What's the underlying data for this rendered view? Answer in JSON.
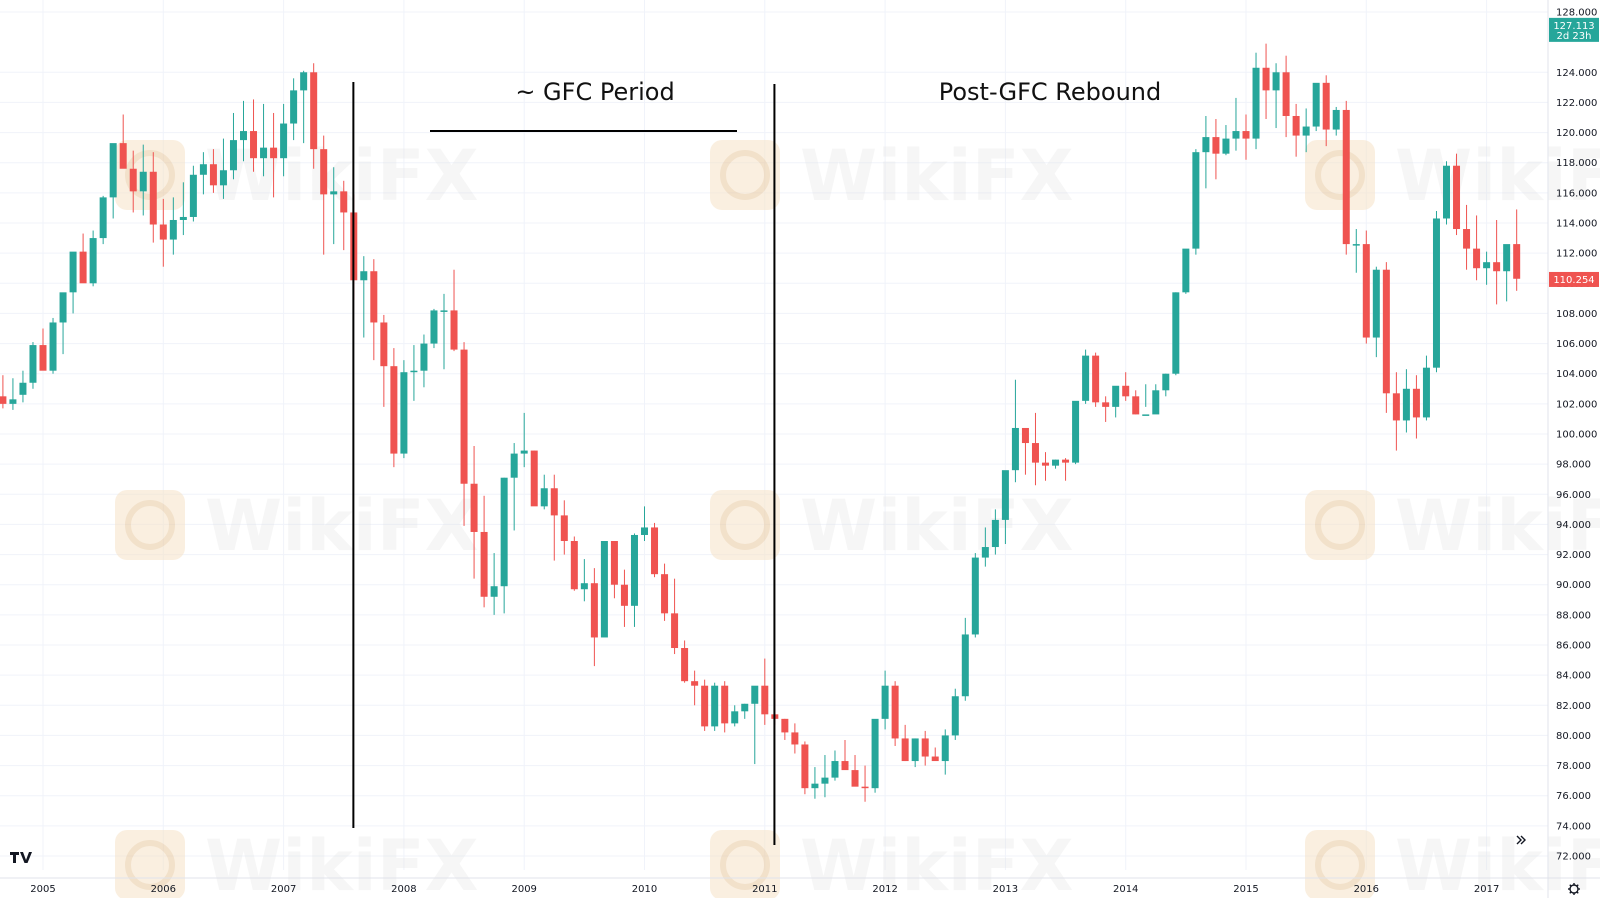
{
  "chart_data": {
    "type": "candlestick",
    "title": "",
    "xlabel": "",
    "ylabel": "",
    "timeframe": "monthly",
    "ylim": [
      71.2,
      129.0
    ],
    "y_ticks": [
      "128.000",
      "124.000",
      "122.000",
      "120.000",
      "118.000",
      "116.000",
      "114.000",
      "112.000",
      "110.000",
      "108.000",
      "106.000",
      "104.000",
      "102.000",
      "100.000",
      "98.000",
      "96.000",
      "94.000",
      "92.000",
      "90.000",
      "88.000",
      "86.000",
      "84.000",
      "82.000",
      "80.000",
      "78.000",
      "76.000",
      "74.000",
      "72.000"
    ],
    "x_ticks": [
      {
        "label": "2005",
        "year": 2005
      },
      {
        "label": "2006",
        "year": 2006
      },
      {
        "label": "2007",
        "year": 2007
      },
      {
        "label": "2008",
        "year": 2008
      },
      {
        "label": "2009",
        "year": 2009
      },
      {
        "label": "2010",
        "year": 2010
      },
      {
        "label": "2011",
        "year": 2011
      },
      {
        "label": "2012",
        "year": 2012
      },
      {
        "label": "2013",
        "year": 2013
      },
      {
        "label": "2014",
        "year": 2014
      },
      {
        "label": "2015",
        "year": 2015
      },
      {
        "label": "2016",
        "year": 2016
      },
      {
        "label": "2017",
        "year": 2017
      }
    ],
    "up_color": "#26a69a",
    "down_color": "#ef5350",
    "price_tags": [
      {
        "value": 127.113,
        "label": "127.113",
        "sublabel": "2d 23h",
        "color": "#26a69a"
      },
      {
        "value": 110.254,
        "label": "110.254",
        "sublabel": "",
        "color": "#ef5350"
      }
    ],
    "annotations": [
      {
        "text": "~ GFC Period",
        "start_year": 2007.58,
        "end_year": 2011.08
      },
      {
        "text": "Post-GFC Rebound",
        "start_year": 2011.08
      }
    ],
    "series": [
      {
        "values": [
          [
            104.4,
            105.2,
            102.3,
            104.9
          ],
          [
            104.9,
            106.3,
            102.6,
            102.5
          ],
          [
            102.5,
            103.9,
            101.7,
            102.0
          ],
          [
            102.0,
            103.7,
            101.6,
            102.3
          ],
          [
            102.6,
            104.2,
            102.1,
            103.4
          ],
          [
            103.4,
            106.1,
            103.0,
            105.9
          ],
          [
            105.9,
            107.0,
            104.9,
            104.2
          ],
          [
            104.2,
            107.7,
            104.0,
            107.4
          ],
          [
            107.4,
            108.2,
            105.3,
            109.4
          ],
          [
            109.4,
            111.5,
            108.0,
            112.1
          ],
          [
            112.1,
            113.3,
            110.3,
            110.0
          ],
          [
            110.0,
            113.5,
            109.8,
            113.0
          ],
          [
            113.0,
            115.8,
            112.6,
            115.7
          ],
          [
            115.7,
            118.6,
            114.3,
            119.3
          ],
          [
            119.3,
            121.2,
            118.4,
            117.6
          ],
          [
            117.6,
            118.8,
            114.7,
            116.1
          ],
          [
            116.1,
            119.2,
            114.5,
            117.4
          ],
          [
            117.4,
            118.7,
            112.7,
            113.9
          ],
          [
            113.9,
            115.6,
            111.1,
            112.9
          ],
          [
            112.9,
            115.7,
            111.9,
            114.2
          ],
          [
            114.2,
            116.7,
            113.2,
            114.4
          ],
          [
            114.4,
            117.8,
            114.1,
            117.2
          ],
          [
            117.2,
            118.7,
            115.9,
            117.9
          ],
          [
            117.9,
            118.9,
            116.0,
            116.5
          ],
          [
            116.5,
            119.6,
            115.6,
            117.5
          ],
          [
            117.5,
            121.3,
            116.9,
            119.5
          ],
          [
            119.5,
            122.1,
            118.1,
            120.1
          ],
          [
            120.1,
            122.2,
            117.4,
            118.3
          ],
          [
            118.3,
            121.9,
            117.1,
            119.0
          ],
          [
            119.0,
            121.3,
            115.7,
            118.3
          ],
          [
            118.3,
            121.9,
            117.1,
            120.6
          ],
          [
            120.6,
            123.6,
            119.5,
            122.8
          ],
          [
            122.8,
            124.1,
            119.3,
            124.0
          ],
          [
            124.0,
            124.6,
            117.6,
            118.9
          ],
          [
            118.9,
            119.8,
            111.9,
            115.9
          ],
          [
            115.9,
            117.7,
            112.6,
            116.1
          ],
          [
            116.1,
            116.8,
            112.2,
            114.7
          ],
          [
            114.7,
            115.9,
            108.9,
            110.2
          ],
          [
            110.2,
            111.8,
            106.4,
            110.8
          ],
          [
            110.8,
            111.6,
            104.9,
            107.4
          ],
          [
            107.4,
            107.9,
            101.8,
            104.5
          ],
          [
            104.5,
            105.7,
            97.8,
            98.7
          ],
          [
            98.7,
            104.9,
            98.4,
            104.1
          ],
          [
            104.1,
            105.9,
            102.2,
            104.2
          ],
          [
            104.2,
            106.6,
            103.1,
            106.0
          ],
          [
            106.0,
            108.3,
            105.7,
            108.2
          ],
          [
            108.2,
            109.3,
            104.3,
            108.2
          ],
          [
            108.2,
            110.9,
            105.5,
            105.6
          ],
          [
            105.6,
            106.1,
            93.9,
            96.7
          ],
          [
            96.7,
            99.2,
            90.4,
            93.5
          ],
          [
            93.5,
            95.9,
            88.5,
            89.2
          ],
          [
            89.2,
            92.1,
            88.0,
            89.9
          ],
          [
            89.9,
            97.1,
            88.1,
            97.1
          ],
          [
            97.1,
            99.4,
            93.6,
            98.7
          ],
          [
            98.7,
            101.4,
            97.8,
            98.9
          ],
          [
            98.9,
            98.9,
            95.5,
            95.2
          ],
          [
            95.2,
            97.3,
            95.0,
            96.4
          ],
          [
            96.4,
            97.3,
            91.6,
            94.6
          ],
          [
            94.6,
            95.6,
            92.0,
            92.9
          ],
          [
            92.9,
            93.2,
            89.6,
            89.7
          ],
          [
            89.7,
            91.7,
            88.9,
            90.1
          ],
          [
            90.1,
            91.1,
            84.6,
            86.5
          ],
          [
            86.5,
            92.1,
            86.6,
            92.9
          ],
          [
            92.9,
            92.9,
            89.1,
            90.0
          ],
          [
            90.0,
            91.0,
            87.2,
            88.6
          ],
          [
            88.6,
            93.4,
            87.2,
            93.3
          ],
          [
            93.3,
            95.2,
            92.9,
            93.8
          ],
          [
            93.8,
            94.1,
            90.5,
            90.7
          ],
          [
            90.7,
            91.4,
            87.6,
            88.1
          ],
          [
            88.1,
            90.4,
            85.4,
            85.8
          ],
          [
            85.8,
            86.3,
            83.5,
            83.6
          ],
          [
            83.6,
            84.3,
            82.0,
            83.3
          ],
          [
            83.3,
            83.7,
            80.3,
            80.6
          ],
          [
            80.6,
            83.5,
            80.3,
            83.3
          ],
          [
            83.3,
            83.6,
            80.2,
            80.8
          ],
          [
            80.8,
            82.0,
            80.6,
            81.6
          ],
          [
            81.6,
            82.1,
            81.1,
            82.1
          ],
          [
            82.1,
            83.2,
            78.1,
            83.3
          ],
          [
            83.3,
            85.1,
            80.7,
            81.4
          ],
          [
            81.4,
            82.4,
            80.7,
            81.1
          ],
          [
            81.1,
            81.1,
            79.7,
            80.2
          ],
          [
            80.2,
            80.8,
            78.8,
            79.4
          ],
          [
            79.4,
            79.6,
            76.1,
            76.5
          ],
          [
            76.5,
            77.9,
            75.8,
            76.8
          ],
          [
            76.8,
            78.7,
            75.9,
            77.2
          ],
          [
            77.2,
            79.0,
            77.0,
            78.3
          ],
          [
            78.3,
            79.7,
            77.9,
            77.7
          ],
          [
            77.7,
            78.7,
            76.7,
            76.6
          ],
          [
            76.6,
            78.0,
            75.6,
            76.5
          ],
          [
            76.5,
            81.0,
            76.2,
            81.1
          ],
          [
            81.1,
            84.3,
            80.4,
            83.3
          ],
          [
            83.3,
            83.6,
            79.3,
            79.8
          ],
          [
            79.8,
            80.7,
            78.3,
            78.3
          ],
          [
            78.3,
            79.8,
            77.9,
            79.8
          ],
          [
            79.8,
            80.3,
            78.0,
            78.6
          ],
          [
            78.6,
            79.2,
            78.4,
            78.3
          ],
          [
            78.3,
            80.4,
            77.4,
            80.0
          ],
          [
            80.0,
            83.1,
            79.7,
            82.6
          ],
          [
            82.6,
            87.8,
            82.3,
            86.7
          ],
          [
            86.7,
            92.1,
            86.5,
            91.8
          ],
          [
            91.8,
            93.8,
            91.2,
            92.5
          ],
          [
            92.5,
            95.0,
            92.0,
            94.3
          ],
          [
            94.3,
            97.2,
            92.7,
            97.6
          ],
          [
            97.6,
            103.6,
            96.8,
            100.4
          ],
          [
            100.4,
            100.2,
            97.3,
            99.4
          ],
          [
            99.4,
            101.4,
            96.6,
            98.1
          ],
          [
            98.1,
            98.8,
            96.9,
            97.9
          ],
          [
            97.9,
            98.3,
            97.7,
            98.3
          ],
          [
            98.3,
            98.4,
            96.9,
            98.1
          ],
          [
            98.1,
            101.3,
            98.0,
            102.2
          ],
          [
            102.2,
            105.6,
            102.0,
            105.2
          ],
          [
            105.2,
            105.4,
            101.8,
            102.1
          ],
          [
            102.1,
            102.5,
            100.8,
            101.8
          ],
          [
            101.8,
            102.4,
            101.1,
            103.2
          ],
          [
            103.2,
            104.1,
            102.2,
            102.5
          ],
          [
            102.5,
            102.9,
            101.3,
            101.3
          ],
          [
            101.3,
            103.3,
            101.8,
            101.3
          ],
          [
            101.3,
            103.3,
            101.4,
            102.9
          ],
          [
            102.9,
            104.0,
            102.5,
            104.0
          ],
          [
            104.0,
            109.4,
            103.9,
            109.4
          ],
          [
            109.4,
            112.0,
            109.3,
            112.3
          ],
          [
            112.3,
            118.9,
            111.9,
            118.7
          ],
          [
            118.7,
            121.1,
            116.3,
            119.7
          ],
          [
            119.7,
            120.9,
            116.9,
            118.6
          ],
          [
            118.6,
            120.5,
            118.5,
            119.6
          ],
          [
            119.6,
            122.3,
            118.8,
            120.1
          ],
          [
            120.1,
            121.2,
            118.2,
            119.6
          ],
          [
            119.6,
            125.3,
            118.9,
            124.3
          ],
          [
            124.3,
            125.9,
            120.9,
            122.8
          ],
          [
            122.8,
            124.6,
            120.3,
            124.0
          ],
          [
            124.0,
            125.1,
            119.7,
            121.1
          ],
          [
            121.1,
            121.9,
            118.4,
            119.8
          ],
          [
            119.8,
            121.6,
            118.7,
            120.4
          ],
          [
            120.4,
            122.9,
            120.1,
            123.3
          ],
          [
            123.3,
            123.8,
            119.1,
            120.2
          ],
          [
            120.2,
            121.7,
            119.8,
            121.5
          ],
          [
            121.5,
            122.1,
            111.9,
            112.6
          ],
          [
            112.6,
            113.6,
            110.7,
            112.6
          ],
          [
            112.6,
            113.5,
            106.0,
            106.4
          ],
          [
            106.4,
            111.1,
            105.1,
            110.9
          ],
          [
            110.9,
            111.4,
            101.4,
            102.7
          ],
          [
            102.7,
            104.1,
            98.9,
            100.9
          ],
          [
            100.9,
            104.3,
            100.1,
            103.0
          ],
          [
            103.0,
            103.9,
            99.7,
            101.1
          ],
          [
            101.1,
            105.2,
            100.9,
            104.4
          ],
          [
            104.4,
            114.8,
            104.1,
            114.3
          ],
          [
            114.3,
            118.1,
            113.9,
            117.8
          ],
          [
            117.8,
            118.6,
            113.2,
            113.6
          ],
          [
            113.6,
            115.2,
            110.9,
            112.3
          ],
          [
            112.3,
            114.5,
            110.2,
            111.0
          ],
          [
            111.0,
            112.1,
            109.9,
            111.4
          ],
          [
            111.4,
            114.2,
            108.6,
            110.8
          ],
          [
            110.8,
            112.0,
            108.8,
            112.6
          ],
          [
            112.6,
            114.9,
            109.5,
            110.3
          ]
        ]
      }
    ]
  }
}
